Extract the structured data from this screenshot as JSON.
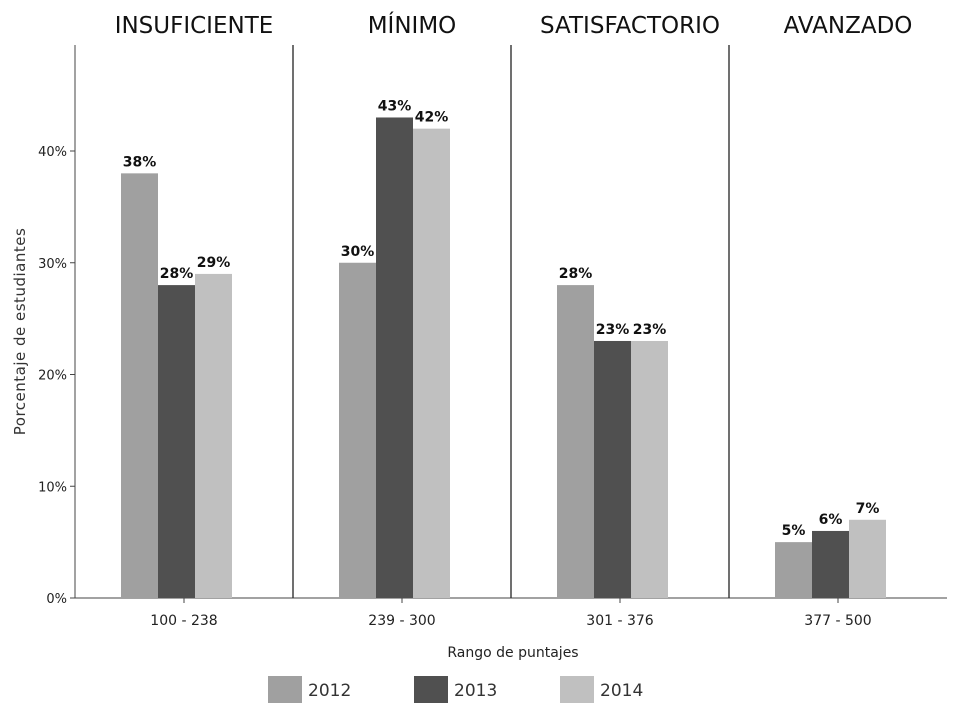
{
  "chart_data": {
    "type": "bar",
    "title": "",
    "xlabel": "Rango de puntajes",
    "ylabel": "Porcentaje de estudiantes",
    "ylim": [
      0,
      50
    ],
    "yticks": [
      0,
      10,
      20,
      30,
      40
    ],
    "ytick_labels": [
      "0%",
      "10%",
      "20%",
      "30%",
      "40%"
    ],
    "grid": false,
    "legend_position": "bottom",
    "band_titles": [
      "INSUFICIENTE",
      "MÍNIMO",
      "SATISFACTORIO",
      "AVANZADO"
    ],
    "categories": [
      "100 - 238",
      "239 - 300",
      "301 - 376",
      "377 - 500"
    ],
    "series": [
      {
        "name": "2012",
        "color": "#a0a0a0",
        "values": [
          38,
          30,
          28,
          5
        ],
        "labels": [
          "38%",
          "30%",
          "28%",
          "5%"
        ]
      },
      {
        "name": "2013",
        "color": "#505050",
        "values": [
          28,
          43,
          23,
          6
        ],
        "labels": [
          "28%",
          "43%",
          "23%",
          "6%"
        ]
      },
      {
        "name": "2014",
        "color": "#c0c0c0",
        "values": [
          29,
          42,
          23,
          7
        ],
        "labels": [
          "29%",
          "42%",
          "23%",
          "7%"
        ]
      }
    ]
  }
}
